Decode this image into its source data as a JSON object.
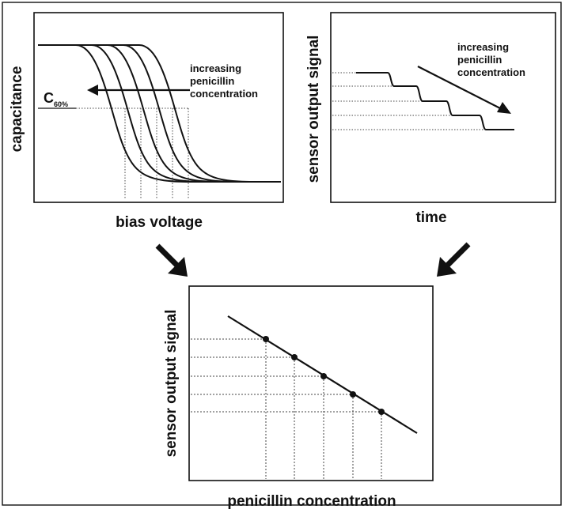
{
  "colors": {
    "ink": "#111111",
    "background": "#ffffff",
    "guide": "#444444"
  },
  "icons": {
    "arrows": "down-right-arrow-icon, down-left-arrow-icon"
  },
  "top_left_panel": {
    "y_label": "capacitance",
    "x_label": "bias voltage",
    "threshold_label": "C",
    "threshold_subscript": "60%",
    "annotation_lines": [
      "increasing",
      "penicillin",
      "concentration"
    ]
  },
  "top_right_panel": {
    "y_label": "sensor output signal",
    "x_label": "time",
    "annotation_lines": [
      "increasing",
      "penicillin",
      "concentration"
    ]
  },
  "bottom_panel": {
    "y_label": "sensor output signal",
    "x_label": "penicillin concentration"
  }
}
